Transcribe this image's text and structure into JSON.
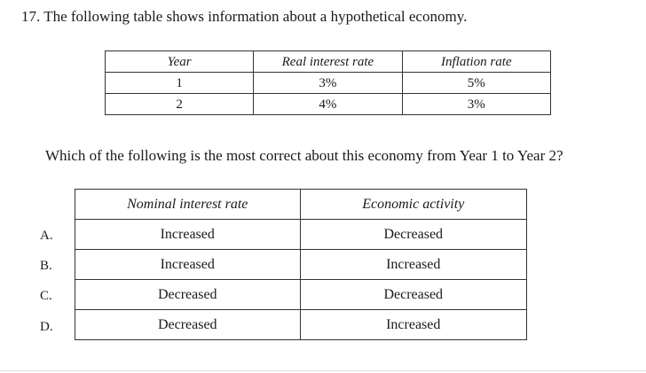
{
  "question": {
    "text": "17. The following table shows information about a hypothetical economy."
  },
  "info_table": {
    "headers": [
      "Year",
      "Real interest rate",
      "Inflation rate"
    ],
    "rows": [
      [
        "1",
        "3%",
        "5%"
      ],
      [
        "2",
        "4%",
        "3%"
      ]
    ]
  },
  "prompt": {
    "text": "Which of the following is the most correct about this economy from Year 1 to Year 2?"
  },
  "answer_table": {
    "headers": [
      "Nominal interest rate",
      "Economic activity"
    ],
    "options": [
      {
        "letter": "A.",
        "nominal": "Increased",
        "activity": "Decreased"
      },
      {
        "letter": "B.",
        "nominal": "Increased",
        "activity": "Increased"
      },
      {
        "letter": "C.",
        "nominal": "Decreased",
        "activity": "Decreased"
      },
      {
        "letter": "D.",
        "nominal": "Decreased",
        "activity": "Increased"
      }
    ]
  }
}
